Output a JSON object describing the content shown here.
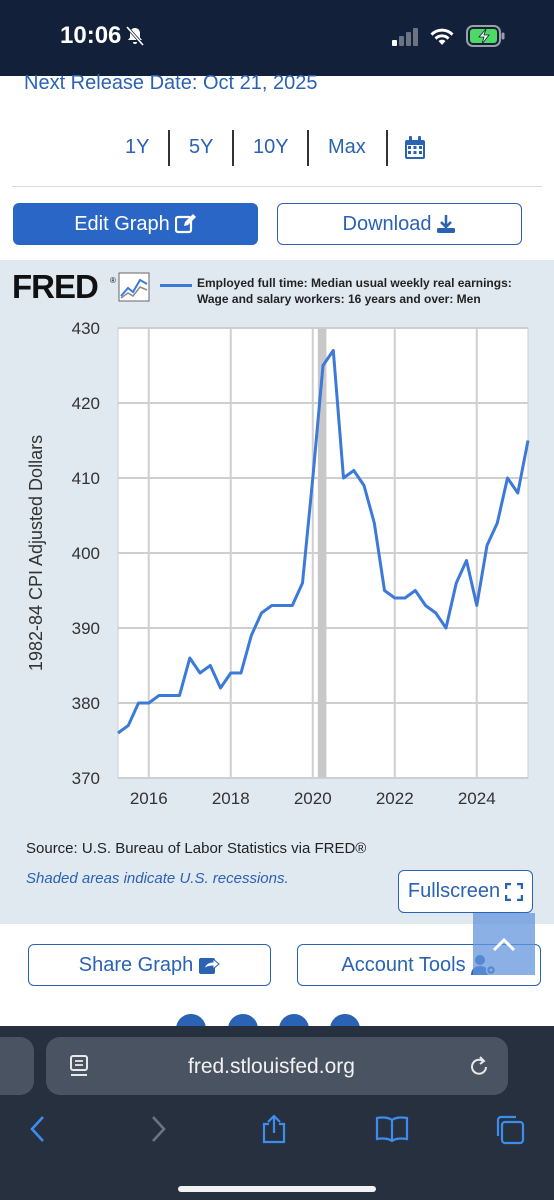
{
  "status": {
    "time": "10:06"
  },
  "release": {
    "text": "Next Release Date: Oct 21, 2025"
  },
  "ranges": [
    "1Y",
    "5Y",
    "10Y",
    "Max"
  ],
  "buttons": {
    "edit": "Edit Graph",
    "download": "Download",
    "fullscreen": "Fullscreen",
    "share": "Share Graph",
    "account": "Account Tools"
  },
  "fred": {
    "logo": "FRED",
    "tm": "®"
  },
  "chart_data": {
    "type": "line",
    "series": [
      {
        "name": "Employed full time: Median usual weekly real earnings: Wage and salary workers: 16 years and over: Men",
        "color": "#3b7ad8",
        "x": [
          2015.25,
          2015.5,
          2015.75,
          2016.0,
          2016.25,
          2016.5,
          2016.75,
          2017.0,
          2017.25,
          2017.5,
          2017.75,
          2018.0,
          2018.25,
          2018.5,
          2018.75,
          2019.0,
          2019.25,
          2019.5,
          2019.75,
          2020.0,
          2020.25,
          2020.5,
          2020.75,
          2021.0,
          2021.25,
          2021.5,
          2021.75,
          2022.0,
          2022.25,
          2022.5,
          2022.75,
          2023.0,
          2023.25,
          2023.5,
          2023.75,
          2024.0,
          2024.25,
          2024.5,
          2024.75,
          2025.0,
          2025.25
        ],
        "y": [
          376,
          377,
          380,
          380,
          381,
          381,
          381,
          386,
          384,
          385,
          382,
          384,
          384,
          389,
          392,
          393,
          393,
          393,
          396,
          410,
          425,
          427,
          410,
          411,
          409,
          404,
          395,
          394,
          394,
          395,
          393,
          392,
          390,
          396,
          399,
          393,
          401,
          404,
          410,
          408,
          415
        ]
      }
    ],
    "xlim": [
      2015.25,
      2025.25
    ],
    "ylim": [
      370,
      430
    ],
    "xticks": [
      2016,
      2018,
      2020,
      2022,
      2024
    ],
    "yticks": [
      370,
      380,
      390,
      400,
      410,
      420,
      430
    ],
    "ylabel": "1982-84 CPI Adjusted Dollars",
    "recessions": [
      [
        2020.125,
        2020.333
      ]
    ],
    "grid": true,
    "legend": "top"
  },
  "footer": {
    "source": "Source: U.S. Bureau of Labor Statistics via FRED®",
    "recession_note": "Shaded areas indicate U.S. recessions."
  },
  "browser": {
    "url": "fred.stlouisfed.org"
  }
}
